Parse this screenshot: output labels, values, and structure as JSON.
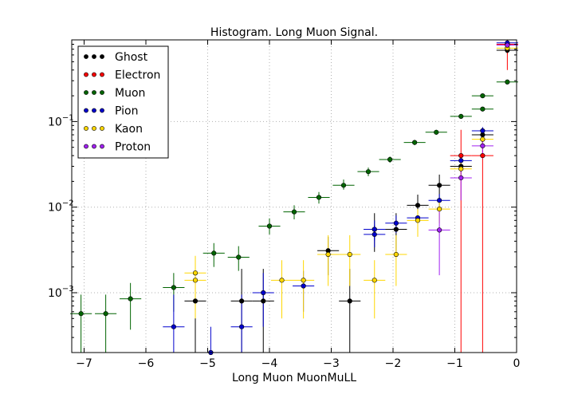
{
  "chart_data": {
    "type": "scatter",
    "title": "Histogram. Long Muon Signal.",
    "xlabel": "Long Muon MuonMuLL",
    "ylabel": "",
    "xlim": [
      -7.2,
      0
    ],
    "ylim": [
      0.0002,
      0.9
    ],
    "yscale": "log",
    "grid": true,
    "legend_position": "top-left",
    "x_ticks": [
      -7,
      -6,
      -5,
      -4,
      -3,
      -2,
      -1,
      0
    ],
    "x_tick_labels": [
      "−7",
      "−6",
      "−5",
      "−4",
      "−3",
      "−2",
      "−1",
      "0"
    ],
    "y_ticks": [
      {
        "value": 0.001,
        "base": "10",
        "exp": "−3"
      },
      {
        "value": 0.01,
        "base": "10",
        "exp": "−2"
      },
      {
        "value": 0.1,
        "base": "10",
        "exp": "−1"
      }
    ],
    "series": [
      {
        "name": "Ghost",
        "color": "#000000",
        "points": [
          {
            "x": -5.2,
            "y": 0.0008,
            "lo": 0.0002,
            "hi": 0.0019
          },
          {
            "x": -4.45,
            "y": 0.0008,
            "lo": 0.0002,
            "hi": 0.0019
          },
          {
            "x": -4.1,
            "y": 0.0008,
            "lo": 0.0002,
            "hi": 0.0019
          },
          {
            "x": -3.05,
            "y": 0.0031,
            "lo": 0.0016,
            "hi": 0.0045
          },
          {
            "x": -2.7,
            "y": 0.0008,
            "lo": 0.0002,
            "hi": 0.0019
          },
          {
            "x": -2.3,
            "y": 0.0055,
            "lo": 0.003,
            "hi": 0.0085
          },
          {
            "x": -1.95,
            "y": 0.0055,
            "lo": 0.003,
            "hi": 0.0085
          },
          {
            "x": -1.6,
            "y": 0.0105,
            "lo": 0.0065,
            "hi": 0.014
          },
          {
            "x": -1.25,
            "y": 0.018,
            "lo": 0.0125,
            "hi": 0.024
          },
          {
            "x": -0.9,
            "y": 0.03,
            "lo": 0.021,
            "hi": 0.039
          },
          {
            "x": -0.55,
            "y": 0.07,
            "lo": 0.055,
            "hi": 0.085
          },
          {
            "x": -0.15,
            "y": 0.68,
            "lo": 0.62,
            "hi": 0.74
          }
        ]
      },
      {
        "name": "Electron",
        "color": "#ff0000",
        "points": [
          {
            "x": -0.9,
            "y": 0.04,
            "lo": 0.0002,
            "hi": 0.08
          },
          {
            "x": -0.55,
            "y": 0.04,
            "lo": 0.0002,
            "hi": 0.08
          },
          {
            "x": -0.15,
            "y": 0.8,
            "lo": 0.4,
            "hi": 0.9
          }
        ]
      },
      {
        "name": "Muon",
        "color": "#006400",
        "points": [
          {
            "x": -7.05,
            "y": 0.00057,
            "lo": 0.0002,
            "hi": 0.00095
          },
          {
            "x": -6.65,
            "y": 0.00057,
            "lo": 0.0002,
            "hi": 0.00095
          },
          {
            "x": -6.25,
            "y": 0.00085,
            "lo": 0.00037,
            "hi": 0.0013
          },
          {
            "x": -5.55,
            "y": 0.00115,
            "lo": 0.0006,
            "hi": 0.0017
          },
          {
            "x": -4.9,
            "y": 0.0029,
            "lo": 0.002,
            "hi": 0.0038
          },
          {
            "x": -4.5,
            "y": 0.0026,
            "lo": 0.0018,
            "hi": 0.0035
          },
          {
            "x": -4.0,
            "y": 0.006,
            "lo": 0.0048,
            "hi": 0.0074
          },
          {
            "x": -3.6,
            "y": 0.0088,
            "lo": 0.0072,
            "hi": 0.0105
          },
          {
            "x": -3.2,
            "y": 0.013,
            "lo": 0.011,
            "hi": 0.015
          },
          {
            "x": -2.8,
            "y": 0.018,
            "lo": 0.016,
            "hi": 0.021
          },
          {
            "x": -2.4,
            "y": 0.026,
            "lo": 0.023,
            "hi": 0.029
          },
          {
            "x": -2.05,
            "y": 0.036,
            "lo": 0.033,
            "hi": 0.039
          },
          {
            "x": -1.65,
            "y": 0.057,
            "lo": 0.053,
            "hi": 0.061
          },
          {
            "x": -1.3,
            "y": 0.075,
            "lo": 0.07,
            "hi": 0.08
          },
          {
            "x": -0.9,
            "y": 0.115,
            "lo": 0.109,
            "hi": 0.121
          },
          {
            "x": -0.55,
            "y": 0.14,
            "lo": 0.134,
            "hi": 0.146
          },
          {
            "x": -0.55,
            "y": 0.2,
            "lo": 0.192,
            "hi": 0.208
          },
          {
            "x": -0.15,
            "y": 0.29,
            "lo": 0.28,
            "hi": 0.3
          }
        ]
      },
      {
        "name": "Pion",
        "color": "#0000cd",
        "points": [
          {
            "x": -5.55,
            "y": 0.0004,
            "lo": 0.0002,
            "hi": 0.00095
          },
          {
            "x": -4.95,
            "y": 0.0002,
            "lo": 0.0002,
            "hi": 0.0004
          },
          {
            "x": -4.45,
            "y": 0.0004,
            "lo": 0.0002,
            "hi": 0.00095
          },
          {
            "x": -4.1,
            "y": 0.001,
            "lo": 0.0004,
            "hi": 0.0017
          },
          {
            "x": -3.45,
            "y": 0.0012,
            "lo": 0.0006,
            "hi": 0.0018
          },
          {
            "x": -2.3,
            "y": 0.0048,
            "lo": 0.0034,
            "hi": 0.0062
          },
          {
            "x": -2.3,
            "y": 0.0055,
            "lo": 0.0041,
            "hi": 0.007
          },
          {
            "x": -1.95,
            "y": 0.0065,
            "lo": 0.005,
            "hi": 0.008
          },
          {
            "x": -1.6,
            "y": 0.0075,
            "lo": 0.006,
            "hi": 0.009
          },
          {
            "x": -1.25,
            "y": 0.012,
            "lo": 0.0098,
            "hi": 0.0142
          },
          {
            "x": -0.9,
            "y": 0.035,
            "lo": 0.03,
            "hi": 0.04
          },
          {
            "x": -0.55,
            "y": 0.078,
            "lo": 0.07,
            "hi": 0.086
          },
          {
            "x": -0.15,
            "y": 0.83,
            "lo": 0.8,
            "hi": 0.86
          }
        ]
      },
      {
        "name": "Kaon",
        "color": "#ffd700",
        "points": [
          {
            "x": -5.2,
            "y": 0.0017,
            "lo": 0.0009,
            "hi": 0.0027
          },
          {
            "x": -5.2,
            "y": 0.0014,
            "lo": 0.0005,
            "hi": 0.0024
          },
          {
            "x": -3.8,
            "y": 0.0014,
            "lo": 0.0005,
            "hi": 0.0024
          },
          {
            "x": -3.45,
            "y": 0.0014,
            "lo": 0.0005,
            "hi": 0.0024
          },
          {
            "x": -3.05,
            "y": 0.0028,
            "lo": 0.0012,
            "hi": 0.0047
          },
          {
            "x": -2.7,
            "y": 0.0028,
            "lo": 0.0012,
            "hi": 0.0047
          },
          {
            "x": -2.3,
            "y": 0.0014,
            "lo": 0.0005,
            "hi": 0.0024
          },
          {
            "x": -1.95,
            "y": 0.0028,
            "lo": 0.0012,
            "hi": 0.0047
          },
          {
            "x": -1.6,
            "y": 0.007,
            "lo": 0.0045,
            "hi": 0.0095
          },
          {
            "x": -1.25,
            "y": 0.0095,
            "lo": 0.0065,
            "hi": 0.0125
          },
          {
            "x": -0.9,
            "y": 0.028,
            "lo": 0.021,
            "hi": 0.035
          },
          {
            "x": -0.55,
            "y": 0.062,
            "lo": 0.052,
            "hi": 0.072
          },
          {
            "x": -0.15,
            "y": 0.72,
            "lo": 0.66,
            "hi": 0.78
          }
        ]
      },
      {
        "name": "Proton",
        "color": "#a020f0",
        "points": [
          {
            "x": -1.25,
            "y": 0.0054,
            "lo": 0.0016,
            "hi": 0.0098
          },
          {
            "x": -0.9,
            "y": 0.022,
            "lo": 0.012,
            "hi": 0.032
          },
          {
            "x": -0.55,
            "y": 0.052,
            "lo": 0.037,
            "hi": 0.067
          },
          {
            "x": -0.15,
            "y": 0.78,
            "lo": 0.7,
            "hi": 0.86
          }
        ]
      }
    ]
  }
}
